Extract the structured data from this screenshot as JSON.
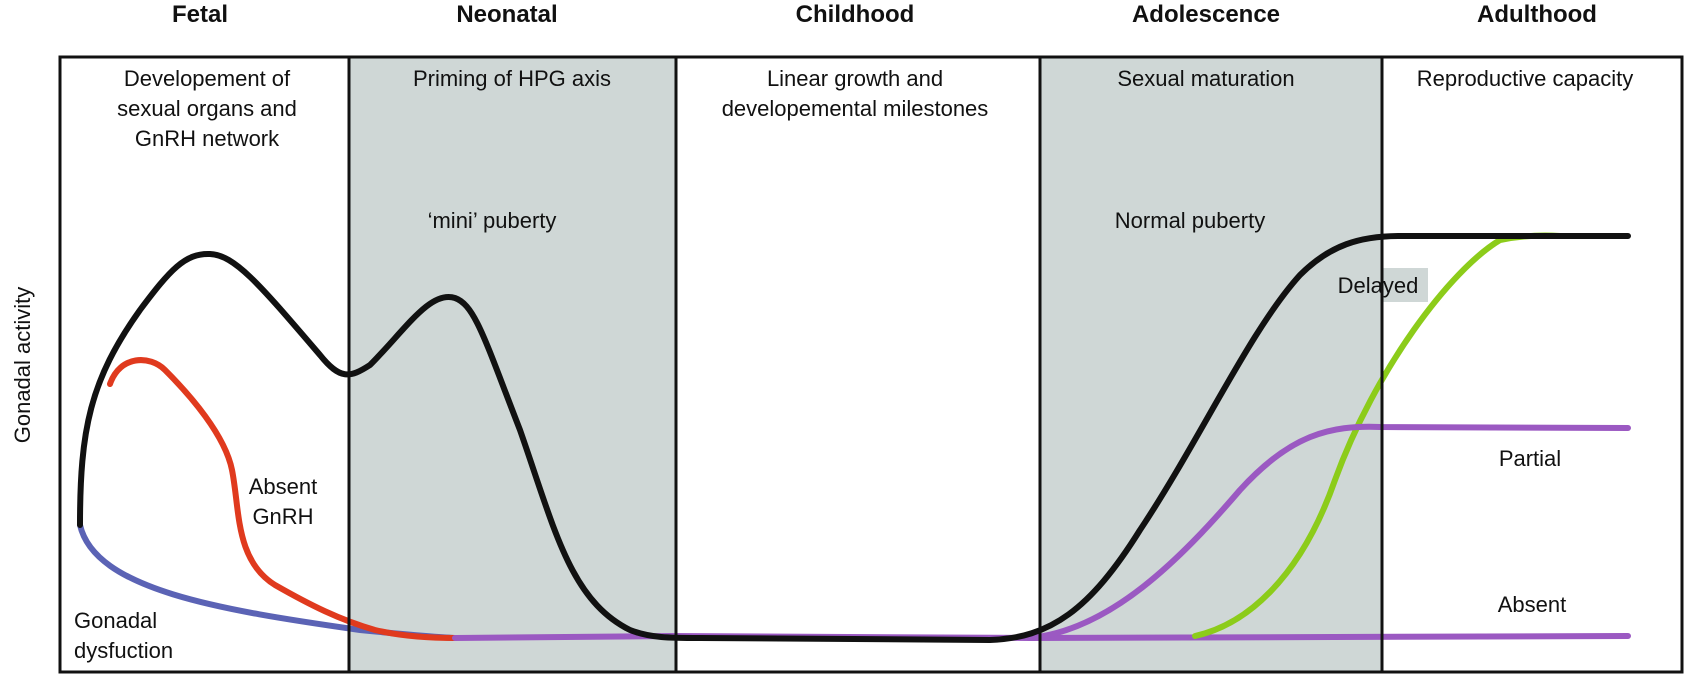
{
  "stages": [
    {
      "title": "Fetal",
      "description": [
        "Developement of",
        "sexual organs and",
        "GnRH network"
      ]
    },
    {
      "title": "Neonatal",
      "description": [
        "Priming of HPG axis"
      ]
    },
    {
      "title": "Childhood",
      "description": [
        "Linear growth and",
        "developemental milestones"
      ]
    },
    {
      "title": "Adolescence",
      "description": [
        "Sexual maturation"
      ]
    },
    {
      "title": "Adulthood",
      "description": [
        "Reproductive capacity"
      ]
    }
  ],
  "y_axis_label": "Gonadal activity",
  "annotations": {
    "mini_puberty": "‘mini’ puberty",
    "normal_puberty": "Normal puberty",
    "delayed": "Delayed",
    "partial": "Partial",
    "absent": "Absent",
    "absent_gnrh": [
      "Absent",
      "GnRH"
    ],
    "gonadal_dysfunction": [
      "Gonadal",
      "dysfuction"
    ]
  },
  "colors": {
    "normal": "#111111",
    "absent_gnrh": "#e03a1e",
    "gonadal_dysfunction": "#5b63b5",
    "partial_absent": "#9b59c2",
    "delayed": "#8ccc1a",
    "shaded_panel": "#cfd7d6"
  },
  "shaded_stages": [
    "Neonatal",
    "Adolescence"
  ]
}
